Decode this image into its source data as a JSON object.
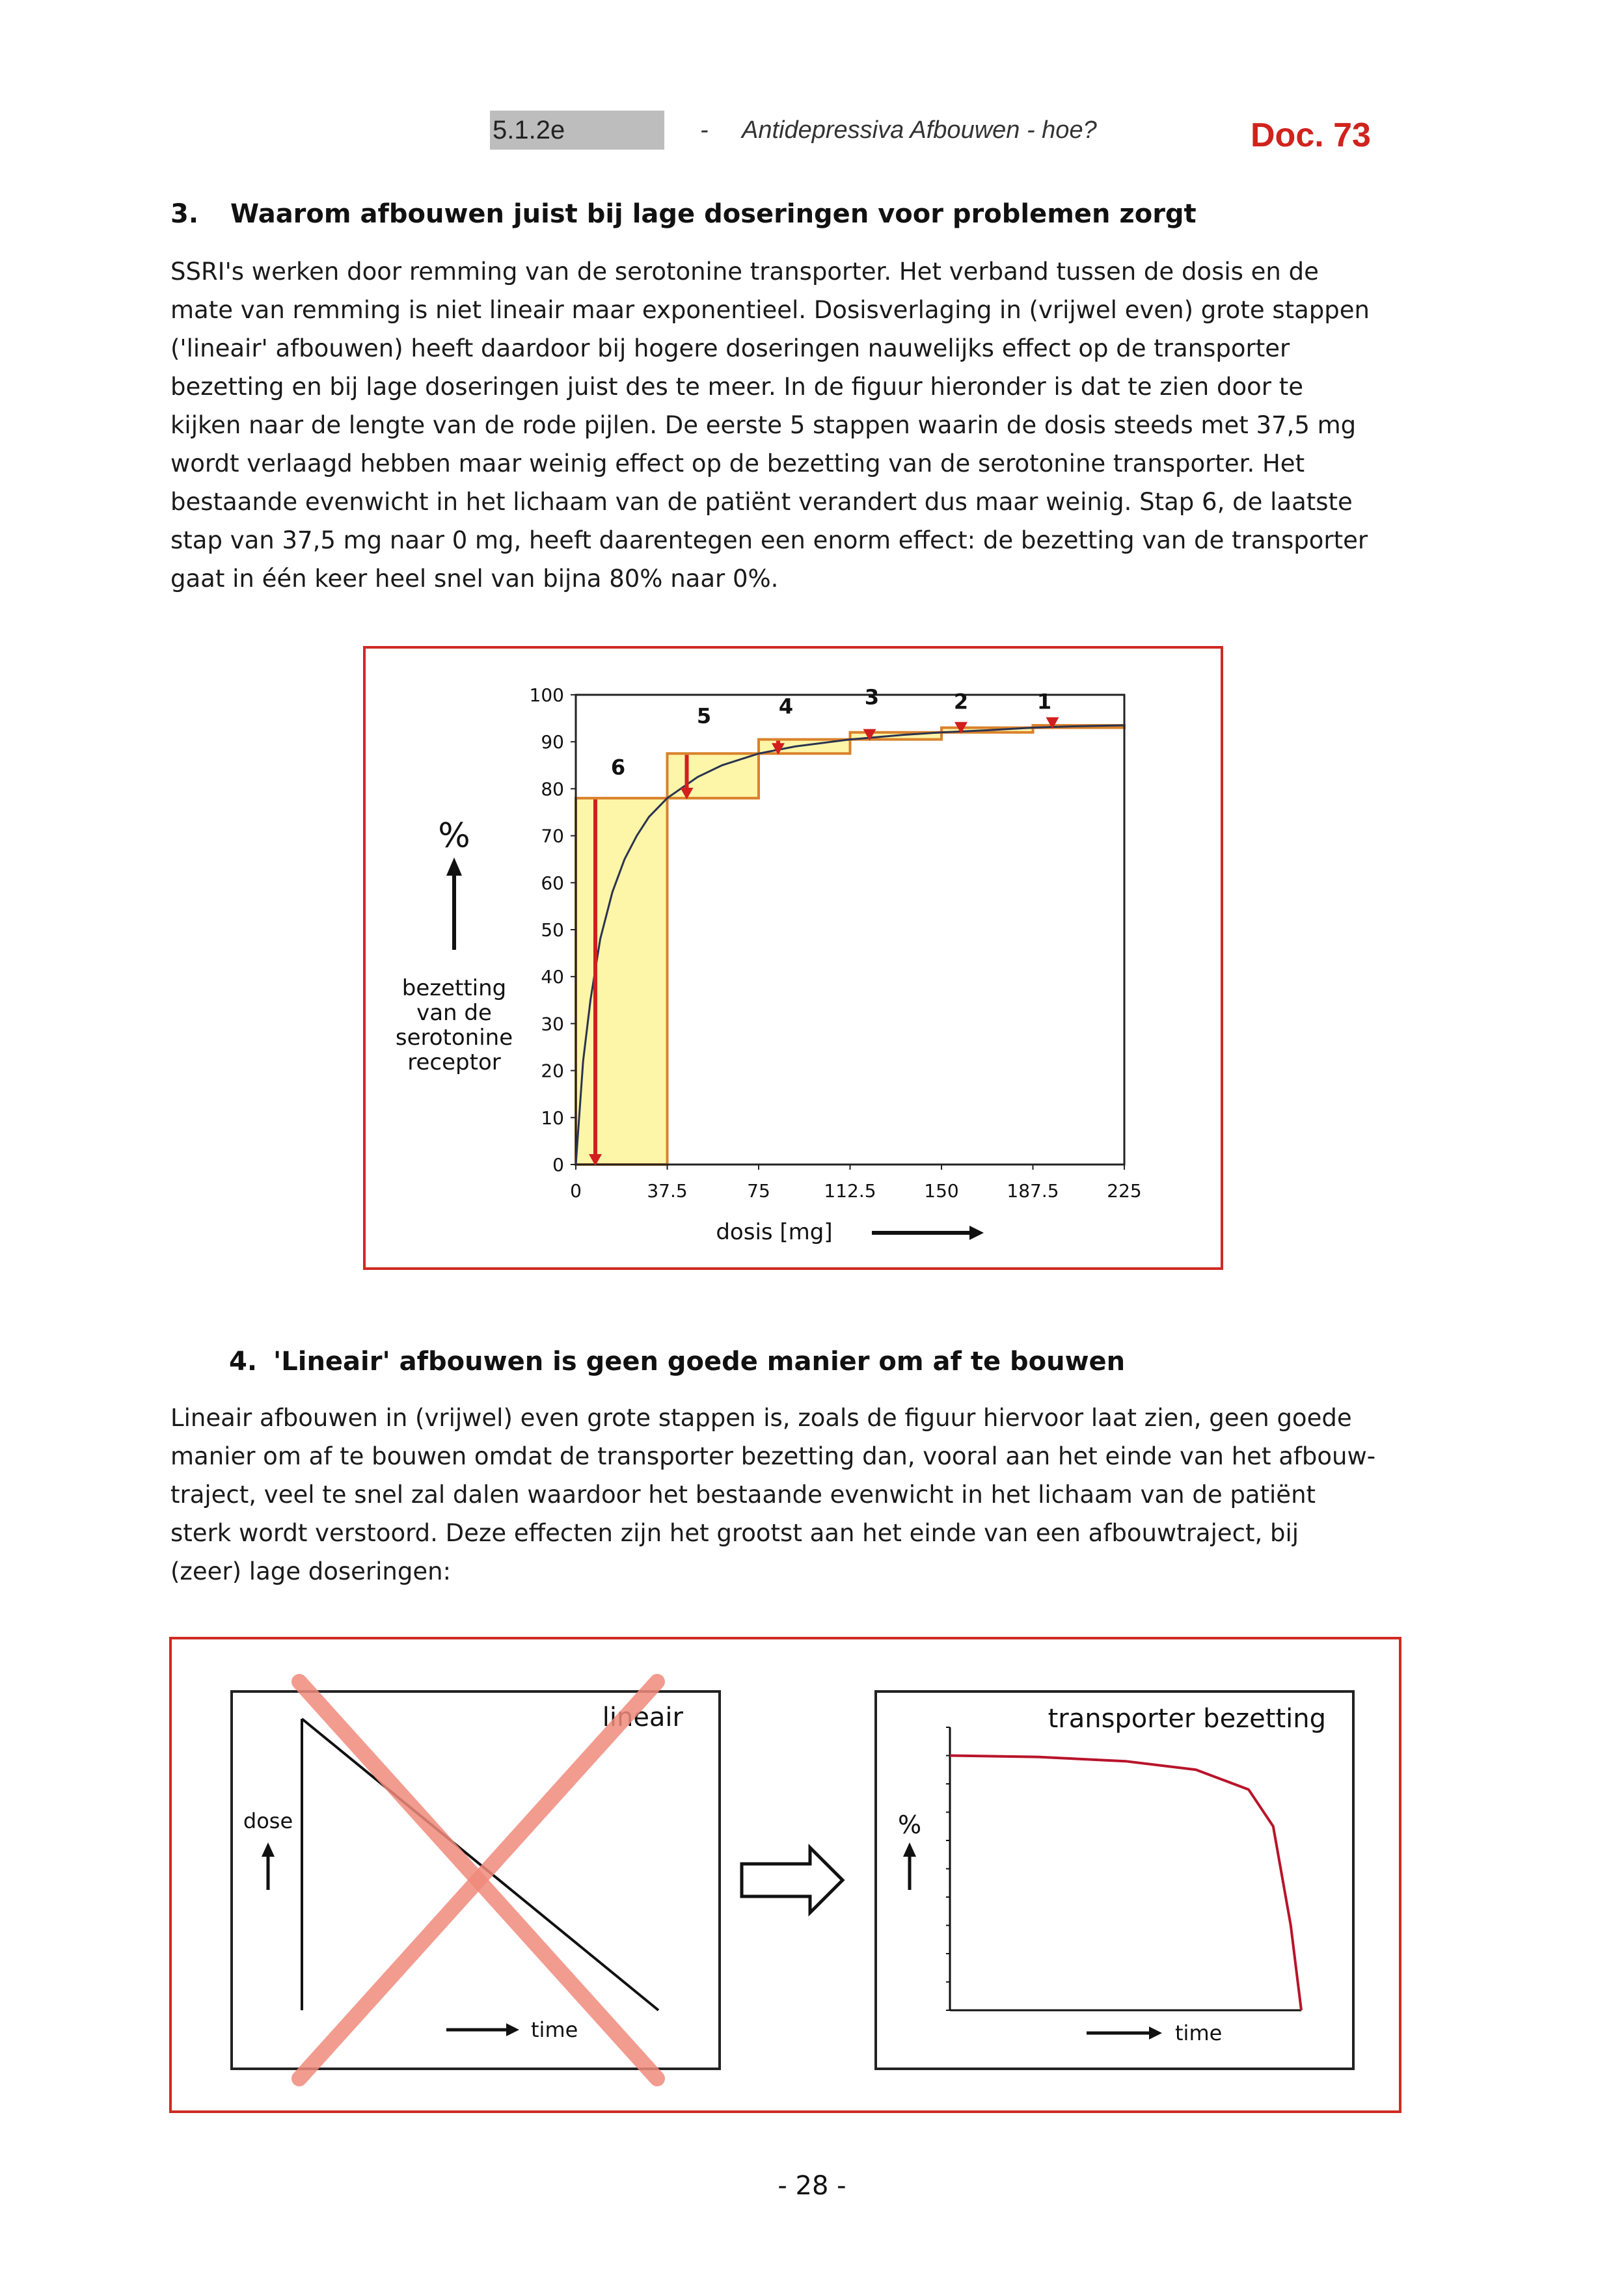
{
  "header": {
    "code": "5.1.2e",
    "separator": "-",
    "title": "Antidepressiva Afbouwen - hoe?",
    "doc_label": "Doc. 73"
  },
  "section3": {
    "number": "3.",
    "heading": "Waarom afbouwen juist bij lage doseringen voor problemen zorgt",
    "lines": [
      "SSRI's werken door remming van de serotonine transporter. Het verband tussen de dosis en de",
      "mate van remming is niet lineair maar exponentieel. Dosisverlaging in (vrijwel even) grote stappen",
      "('lineair' afbouwen) heeft daardoor bij hogere doseringen nauwelijks effect op de transporter",
      "bezetting en bij lage doseringen juist des te meer. In de figuur hieronder is dat te zien door te",
      "kijken naar de lengte van de rode pijlen. De eerste 5 stappen waarin de dosis steeds met 37,5 mg",
      "wordt verlaagd hebben maar weinig effect op de bezetting van de serotonine transporter. Het",
      "bestaande evenwicht in het lichaam van de patiënt verandert dus maar weinig. Stap 6, de laatste",
      "stap van 37,5 mg naar 0 mg, heeft daarentegen een enorm effect: de bezetting van de transporter",
      "gaat in één keer heel snel van bijna 80% naar 0%."
    ]
  },
  "figure1": {
    "ylabel_symbol": "%",
    "ylabel_lines": [
      "bezetting",
      "van de",
      "serotonine",
      "receptor"
    ],
    "xlabel": "dosis [mg]",
    "step_labels": [
      "1",
      "2",
      "3",
      "4",
      "5",
      "6"
    ]
  },
  "section4": {
    "number": "4.",
    "heading": "'Lineair' afbouwen is geen goede manier om af te bouwen",
    "lines": [
      "Lineair afbouwen in (vrijwel) even grote stappen is, zoals de figuur hiervoor laat zien, geen goede",
      "manier om af te bouwen omdat de transporter bezetting dan, vooral aan het einde van het afbouw-",
      "traject, veel te snel zal dalen waardoor het bestaande evenwicht in het lichaam van de patiënt",
      "sterk wordt verstoord. Deze effecten zijn het grootst aan het einde van een afbouwtraject, bij",
      "(zeer) lage doseringen:"
    ]
  },
  "figure2": {
    "left_title": "lineair",
    "left_ylabel": "dose",
    "left_xlabel": "time",
    "right_title": "transporter bezetting",
    "right_ylabel": "%",
    "right_xlabel": "time"
  },
  "chart_data": [
    {
      "type": "line",
      "title": "",
      "xlabel": "dosis [mg]",
      "ylabel": "% bezetting van de serotonine receptor",
      "xlim": [
        0,
        225
      ],
      "ylim": [
        0,
        100
      ],
      "x_ticks": [
        "0",
        "37.5",
        "75",
        "112.5",
        "150",
        "187.5",
        "225"
      ],
      "y_ticks": [
        "0",
        "10",
        "20",
        "30",
        "40",
        "50",
        "60",
        "70",
        "80",
        "90",
        "100"
      ],
      "grid": false,
      "series": [
        {
          "x": [
            0,
            3,
            6,
            10,
            15,
            20,
            25,
            30,
            37.5,
            50,
            60,
            75,
            90,
            112.5,
            135,
            150,
            170,
            187.5,
            205,
            225
          ],
          "values": [
            0,
            22,
            35,
            48,
            58,
            65,
            70,
            74,
            78,
            82.5,
            85,
            87.5,
            89,
            90.5,
            91.5,
            92,
            92.5,
            93,
            93.3,
            93.5
          ]
        }
      ],
      "steps": [
        {
          "label": "1",
          "from_dose": 225,
          "to_dose": 187.5,
          "from_value": 93.5,
          "to_value": 93
        },
        {
          "label": "2",
          "from_dose": 187.5,
          "to_dose": 150,
          "from_value": 93,
          "to_value": 92
        },
        {
          "label": "3",
          "from_dose": 150,
          "to_dose": 112.5,
          "from_value": 92,
          "to_value": 90.5
        },
        {
          "label": "4",
          "from_dose": 112.5,
          "to_dose": 75,
          "from_value": 90.5,
          "to_value": 87.5
        },
        {
          "label": "5",
          "from_dose": 75,
          "to_dose": 37.5,
          "from_value": 87.5,
          "to_value": 78
        },
        {
          "label": "6",
          "from_dose": 37.5,
          "to_dose": 0,
          "from_value": 78,
          "to_value": 0
        }
      ]
    },
    {
      "type": "line",
      "title": "lineair",
      "xlabel": "time",
      "ylabel": "dose",
      "series": [
        {
          "x": [
            0,
            1
          ],
          "values": [
            1,
            0
          ]
        }
      ]
    },
    {
      "type": "line",
      "title": "transporter bezetting",
      "xlabel": "time",
      "ylabel": "%",
      "ylim": [
        0,
        100
      ],
      "series": [
        {
          "x": [
            0,
            0.25,
            0.5,
            0.7,
            0.85,
            0.92,
            0.97,
            1.0
          ],
          "values": [
            90,
            89.5,
            88,
            85,
            78,
            65,
            30,
            0
          ]
        }
      ]
    }
  ]
}
